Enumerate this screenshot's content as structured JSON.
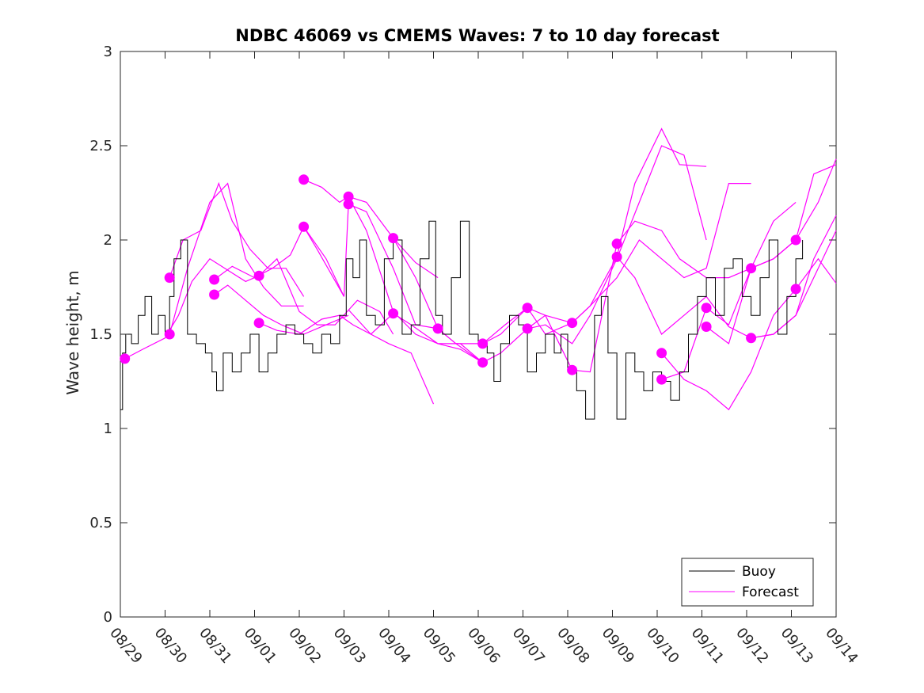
{
  "chart_data": {
    "type": "line",
    "title": "NDBC 46069 vs CMEMS Waves: 7 to 10 day forecast",
    "xlabel": "",
    "ylabel": "Wave height, m",
    "xlim": [
      0,
      16
    ],
    "ylim": [
      0,
      3
    ],
    "grid": false,
    "x_ticks": [
      0,
      1,
      2,
      3,
      4,
      5,
      6,
      7,
      8,
      9,
      10,
      11,
      12,
      13,
      14,
      15,
      16
    ],
    "x_tick_labels": [
      "08/29",
      "08/30",
      "08/31",
      "09/01",
      "09/02",
      "09/03",
      "09/04",
      "09/05",
      "09/06",
      "09/07",
      "09/08",
      "09/09",
      "09/10",
      "09/11",
      "09/12",
      "09/13",
      "09/14"
    ],
    "y_ticks": [
      0,
      0.5,
      1,
      1.5,
      2,
      2.5,
      3
    ],
    "y_tick_labels": [
      "0",
      "0.5",
      "1",
      "1.5",
      "2",
      "2.5",
      "3"
    ],
    "legend": {
      "position": "bottom-right",
      "entries": [
        {
          "label": "Buoy",
          "color": "#000000"
        },
        {
          "label": "Forecast",
          "color": "#ff00ff"
        }
      ]
    },
    "colors": {
      "buoy": "#000000",
      "forecast": "#ff00ff"
    },
    "buoy": {
      "x": [
        0,
        0.05,
        0.12,
        0.25,
        0.4,
        0.55,
        0.7,
        0.85,
        1.0,
        1.1,
        1.2,
        1.35,
        1.5,
        1.7,
        1.9,
        2.05,
        2.15,
        2.3,
        2.5,
        2.7,
        2.9,
        3.1,
        3.3,
        3.5,
        3.7,
        3.9,
        4.1,
        4.3,
        4.5,
        4.7,
        4.9,
        5.05,
        5.2,
        5.35,
        5.5,
        5.7,
        5.9,
        6.1,
        6.3,
        6.5,
        6.7,
        6.9,
        7.05,
        7.2,
        7.4,
        7.6,
        7.8,
        8.0,
        8.2,
        8.35,
        8.5,
        8.7,
        8.9,
        9.1,
        9.3,
        9.5,
        9.7,
        9.85,
        10.0,
        10.2,
        10.4,
        10.6,
        10.75,
        10.9,
        11.1,
        11.3,
        11.5,
        11.7,
        11.9,
        12.1,
        12.3,
        12.5,
        12.7,
        12.9,
        13.1,
        13.3,
        13.5,
        13.7,
        13.9,
        14.1,
        14.3,
        14.5,
        14.7,
        14.9,
        15.1,
        15.25
      ],
      "y": [
        1.1,
        1.4,
        1.5,
        1.45,
        1.6,
        1.7,
        1.5,
        1.6,
        1.5,
        1.7,
        1.9,
        2.0,
        1.5,
        1.45,
        1.4,
        1.3,
        1.2,
        1.4,
        1.3,
        1.4,
        1.5,
        1.3,
        1.4,
        1.5,
        1.55,
        1.5,
        1.45,
        1.4,
        1.5,
        1.45,
        1.6,
        1.9,
        1.8,
        2.0,
        1.6,
        1.55,
        1.9,
        2.0,
        1.5,
        1.55,
        1.9,
        2.1,
        1.6,
        1.5,
        1.8,
        2.1,
        1.5,
        1.45,
        1.4,
        1.25,
        1.45,
        1.6,
        1.55,
        1.3,
        1.4,
        1.5,
        1.4,
        1.5,
        1.3,
        1.2,
        1.05,
        1.6,
        1.7,
        1.4,
        1.05,
        1.4,
        1.3,
        1.2,
        1.3,
        1.25,
        1.15,
        1.3,
        1.5,
        1.7,
        1.8,
        1.6,
        1.85,
        1.9,
        1.7,
        1.6,
        1.8,
        2.0,
        1.5,
        1.7,
        1.9,
        2.0
      ]
    },
    "forecast_series": [
      {
        "x": [
          0.1,
          0.5,
          1.0,
          1.3,
          1.6,
          2.0,
          2.4,
          2.8,
          3.1
        ],
        "y": [
          1.37,
          1.42,
          1.48,
          1.6,
          1.78,
          1.9,
          1.84,
          1.78,
          1.81
        ]
      },
      {
        "x": [
          1.1,
          1.5,
          2.0,
          2.4,
          2.8,
          3.2,
          3.6,
          4.1
        ],
        "y": [
          1.5,
          1.85,
          2.2,
          2.3,
          1.9,
          1.75,
          1.65,
          1.65
        ]
      },
      {
        "x": [
          1.1,
          1.4,
          1.8,
          2.2,
          2.5,
          2.9,
          3.3,
          3.7,
          4.1
        ],
        "y": [
          1.8,
          2.0,
          2.05,
          2.3,
          2.1,
          1.95,
          1.85,
          1.85,
          1.7
        ]
      },
      {
        "x": [
          2.1,
          2.5,
          3.0,
          3.4,
          3.8,
          4.1,
          4.4,
          5.0
        ],
        "y": [
          1.79,
          1.86,
          1.8,
          1.85,
          1.92,
          2.07,
          1.95,
          1.7
        ]
      },
      {
        "x": [
          2.1,
          2.4,
          2.8,
          3.2,
          3.6,
          4.1,
          4.6,
          5.1
        ],
        "y": [
          1.71,
          1.76,
          1.68,
          1.6,
          1.55,
          1.5,
          1.55,
          1.6
        ]
      },
      {
        "x": [
          3.1,
          3.5,
          4.0,
          4.4,
          4.8,
          5.3,
          5.8,
          6.1
        ],
        "y": [
          1.81,
          1.9,
          1.62,
          1.55,
          1.55,
          1.68,
          1.62,
          1.5
        ]
      },
      {
        "x": [
          3.1,
          3.5,
          4.0,
          4.5,
          4.9,
          5.2,
          5.6,
          6.0,
          6.5,
          7.0
        ],
        "y": [
          1.56,
          1.52,
          1.5,
          1.58,
          1.6,
          1.55,
          1.5,
          1.45,
          1.4,
          1.13
        ]
      },
      {
        "x": [
          4.1,
          4.5,
          4.9,
          5.1,
          5.5,
          6.1,
          6.6,
          7.1
        ],
        "y": [
          2.32,
          2.28,
          2.2,
          2.23,
          2.2,
          2.01,
          1.88,
          1.8
        ]
      },
      {
        "x": [
          4.1,
          4.6,
          5.0,
          5.1,
          5.5,
          6.1,
          6.6,
          7.1
        ],
        "y": [
          2.07,
          1.9,
          1.7,
          2.19,
          2.15,
          1.85,
          1.55,
          1.53
        ]
      },
      {
        "x": [
          5.1,
          5.5,
          6.1,
          6.6,
          7.1,
          7.6,
          8.1
        ],
        "y": [
          2.23,
          2.05,
          1.62,
          1.5,
          1.45,
          1.45,
          1.35
        ]
      },
      {
        "x": [
          5.1,
          5.6,
          6.1,
          6.5,
          7.1,
          7.6,
          8.1
        ],
        "y": [
          1.63,
          1.5,
          1.61,
          1.55,
          1.45,
          1.42,
          1.35
        ]
      },
      {
        "x": [
          6.1,
          6.6,
          7.1,
          7.5,
          8.1,
          8.5,
          9.1,
          9.5,
          10.1
        ],
        "y": [
          2.01,
          1.8,
          1.53,
          1.45,
          1.45,
          1.5,
          1.64,
          1.5,
          1.56
        ]
      },
      {
        "x": [
          7.1,
          7.5,
          8.1,
          8.5,
          9.1,
          9.5,
          10.1,
          10.5,
          11.1
        ],
        "y": [
          1.53,
          1.45,
          1.35,
          1.4,
          1.53,
          1.6,
          1.31,
          1.3,
          1.98
        ]
      },
      {
        "x": [
          8.1,
          8.6,
          9.1,
          9.5,
          10.1,
          10.5,
          11.1,
          11.5,
          12.1,
          12.5,
          13.1
        ],
        "y": [
          1.45,
          1.55,
          1.64,
          1.6,
          1.56,
          1.65,
          1.91,
          2.3,
          2.59,
          2.4,
          2.39
        ]
      },
      {
        "x": [
          9.1,
          9.5,
          10.1,
          10.5,
          11.1,
          11.6,
          12.1,
          12.6,
          13.1
        ],
        "y": [
          1.53,
          1.55,
          1.45,
          1.6,
          1.9,
          2.2,
          2.5,
          2.45,
          2.0
        ]
      },
      {
        "x": [
          10.1,
          10.5,
          11.1,
          11.6,
          12.1,
          12.6,
          13.1,
          13.6,
          14.1
        ],
        "y": [
          1.56,
          1.65,
          1.8,
          2.0,
          1.9,
          1.8,
          1.85,
          2.3,
          2.3
        ]
      },
      {
        "x": [
          11.1,
          11.5,
          12.1,
          12.5,
          13.1,
          13.6,
          14.1,
          14.6,
          15.1
        ],
        "y": [
          1.98,
          2.1,
          2.05,
          1.9,
          1.8,
          1.8,
          1.85,
          2.1,
          2.2
        ]
      },
      {
        "x": [
          11.1,
          11.5,
          12.1,
          12.6,
          13.1,
          13.6,
          14.1,
          14.6,
          15.1,
          15.6,
          16.0
        ],
        "y": [
          1.91,
          1.8,
          1.5,
          1.6,
          1.7,
          1.54,
          1.48,
          1.5,
          1.6,
          1.85,
          2.05
        ]
      },
      {
        "x": [
          12.1,
          12.6,
          13.1,
          13.6,
          14.1,
          14.6,
          15.1,
          15.6,
          16.0
        ],
        "y": [
          1.4,
          1.26,
          1.2,
          1.1,
          1.3,
          1.6,
          1.74,
          1.9,
          1.77
        ]
      },
      {
        "x": [
          12.1,
          12.6,
          13.1,
          13.6,
          14.1,
          14.6,
          15.1,
          15.6,
          16.0
        ],
        "y": [
          1.26,
          1.3,
          1.64,
          1.55,
          1.85,
          1.9,
          2.0,
          2.2,
          2.43
        ]
      },
      {
        "x": [
          13.1,
          13.6,
          14.1,
          14.6,
          15.1,
          15.5,
          16.0
        ],
        "y": [
          1.54,
          1.45,
          1.85,
          1.9,
          2.0,
          2.35,
          2.4
        ]
      },
      {
        "x": [
          14.1,
          14.6,
          15.1,
          15.5,
          16.0
        ],
        "y": [
          1.48,
          1.5,
          1.6,
          1.9,
          2.13
        ]
      }
    ],
    "forecast_markers": {
      "x": [
        0.1,
        1.1,
        1.1,
        2.1,
        2.1,
        3.1,
        3.1,
        4.1,
        4.1,
        5.1,
        5.1,
        6.1,
        6.1,
        7.1,
        8.1,
        8.1,
        9.1,
        9.1,
        10.1,
        10.1,
        11.1,
        11.1,
        12.1,
        12.1,
        13.1,
        13.1,
        14.1,
        14.1,
        15.1,
        15.1
      ],
      "y": [
        1.37,
        1.8,
        1.5,
        1.79,
        1.71,
        1.81,
        1.56,
        2.32,
        2.07,
        2.23,
        2.19,
        2.01,
        1.61,
        1.53,
        1.45,
        1.35,
        1.64,
        1.53,
        1.56,
        1.31,
        1.98,
        1.91,
        1.4,
        1.26,
        1.64,
        1.54,
        1.85,
        1.48,
        2.0,
        1.74
      ]
    }
  }
}
